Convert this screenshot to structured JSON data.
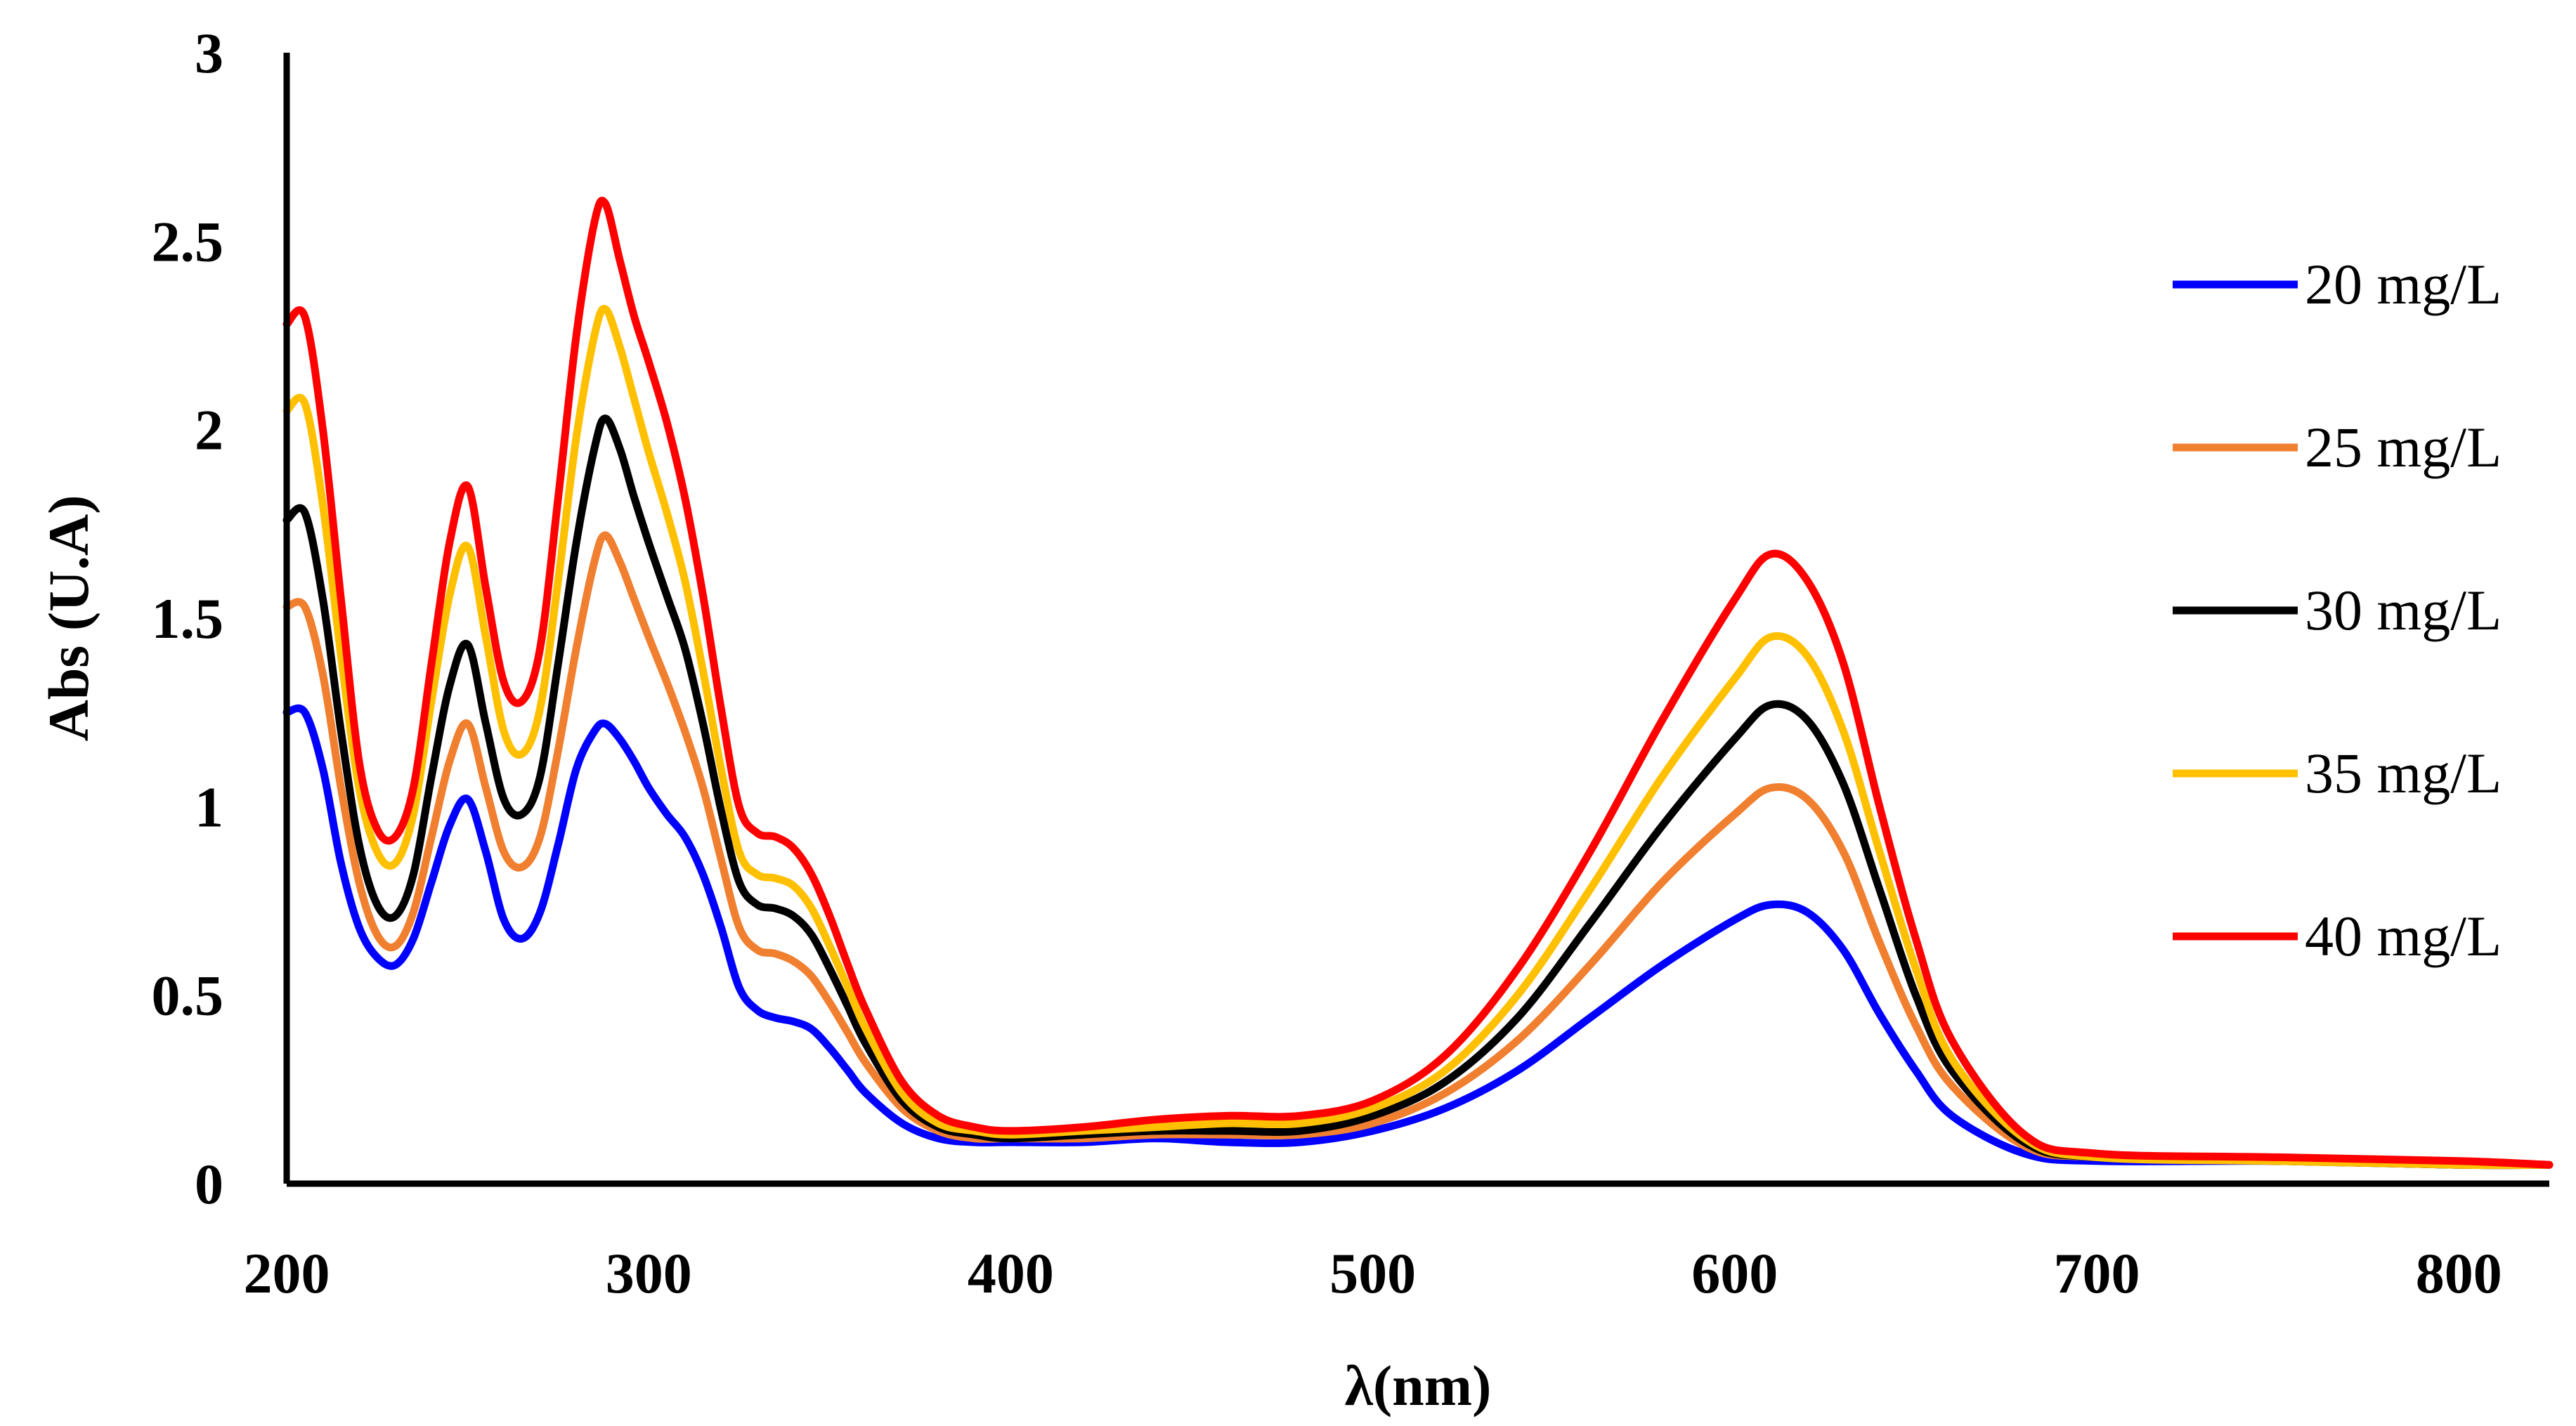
{
  "chart_data": {
    "type": "line",
    "title": "",
    "xlabel": "λ(nm)",
    "ylabel": "Abs (U.A)",
    "xlim": [
      200,
      825
    ],
    "ylim": [
      0,
      3
    ],
    "x_ticks": [
      "200",
      "300",
      "400",
      "500",
      "600",
      "700",
      "800"
    ],
    "y_ticks": [
      "0",
      "0.5",
      "1",
      "1.5",
      "2",
      "2.5",
      "3"
    ],
    "grid": false,
    "legend_position": "right",
    "x": [
      200,
      205,
      210,
      215,
      220,
      225,
      230,
      235,
      240,
      245,
      250,
      255,
      260,
      265,
      270,
      275,
      280,
      285,
      288,
      292,
      296,
      300,
      305,
      310,
      315,
      320,
      325,
      330,
      335,
      340,
      345,
      350,
      355,
      360,
      370,
      380,
      390,
      400,
      420,
      440,
      460,
      480,
      500,
      520,
      540,
      560,
      580,
      600,
      610,
      620,
      630,
      640,
      650,
      660,
      680,
      700,
      750,
      800,
      825
    ],
    "series": [
      {
        "name": "20 mg/L",
        "color": "#0000ff",
        "values": [
          1.25,
          1.25,
          1.1,
          0.85,
          0.68,
          0.6,
          0.58,
          0.65,
          0.8,
          0.95,
          1.02,
          0.88,
          0.7,
          0.65,
          0.72,
          0.9,
          1.1,
          1.2,
          1.22,
          1.18,
          1.12,
          1.05,
          0.98,
          0.92,
          0.82,
          0.68,
          0.52,
          0.46,
          0.44,
          0.43,
          0.41,
          0.36,
          0.3,
          0.24,
          0.16,
          0.12,
          0.11,
          0.11,
          0.11,
          0.12,
          0.11,
          0.11,
          0.14,
          0.2,
          0.3,
          0.44,
          0.58,
          0.7,
          0.74,
          0.72,
          0.62,
          0.45,
          0.3,
          0.18,
          0.08,
          0.06,
          0.06,
          0.05,
          0.05
        ]
      },
      {
        "name": "25 mg/L",
        "color": "#f07f30",
        "values": [
          1.53,
          1.53,
          1.35,
          1.05,
          0.8,
          0.66,
          0.63,
          0.72,
          0.92,
          1.12,
          1.22,
          1.05,
          0.88,
          0.84,
          0.92,
          1.15,
          1.42,
          1.65,
          1.72,
          1.65,
          1.55,
          1.45,
          1.33,
          1.2,
          1.05,
          0.86,
          0.68,
          0.62,
          0.61,
          0.59,
          0.55,
          0.48,
          0.4,
          0.32,
          0.2,
          0.14,
          0.12,
          0.12,
          0.12,
          0.13,
          0.13,
          0.13,
          0.16,
          0.24,
          0.38,
          0.58,
          0.8,
          0.98,
          1.05,
          1.02,
          0.88,
          0.64,
          0.42,
          0.26,
          0.1,
          0.07,
          0.06,
          0.05,
          0.05
        ]
      },
      {
        "name": "30 mg/L",
        "color": "#000000",
        "values": [
          1.76,
          1.78,
          1.55,
          1.2,
          0.9,
          0.74,
          0.71,
          0.82,
          1.08,
          1.32,
          1.43,
          1.22,
          1.02,
          0.98,
          1.08,
          1.38,
          1.7,
          1.95,
          2.03,
          1.95,
          1.82,
          1.7,
          1.56,
          1.42,
          1.22,
          0.99,
          0.8,
          0.74,
          0.73,
          0.71,
          0.66,
          0.57,
          0.47,
          0.37,
          0.22,
          0.15,
          0.13,
          0.12,
          0.13,
          0.14,
          0.14,
          0.14,
          0.18,
          0.27,
          0.44,
          0.69,
          0.95,
          1.18,
          1.27,
          1.23,
          1.06,
          0.78,
          0.5,
          0.3,
          0.11,
          0.07,
          0.06,
          0.05,
          0.05
        ]
      },
      {
        "name": "35 mg/L",
        "color": "#ffc000",
        "values": [
          2.05,
          2.07,
          1.8,
          1.4,
          1.05,
          0.88,
          0.85,
          0.98,
          1.28,
          1.56,
          1.69,
          1.45,
          1.2,
          1.14,
          1.26,
          1.6,
          1.98,
          2.25,
          2.32,
          2.22,
          2.08,
          1.94,
          1.78,
          1.6,
          1.36,
          1.1,
          0.88,
          0.82,
          0.81,
          0.79,
          0.73,
          0.63,
          0.52,
          0.41,
          0.24,
          0.16,
          0.14,
          0.13,
          0.14,
          0.15,
          0.16,
          0.16,
          0.2,
          0.3,
          0.5,
          0.78,
          1.08,
          1.34,
          1.45,
          1.4,
          1.2,
          0.88,
          0.57,
          0.33,
          0.12,
          0.07,
          0.06,
          0.05,
          0.05
        ]
      },
      {
        "name": "40 mg/L",
        "color": "#ff0000",
        "values": [
          2.28,
          2.3,
          2.0,
          1.55,
          1.12,
          0.94,
          0.92,
          1.05,
          1.38,
          1.7,
          1.85,
          1.58,
          1.33,
          1.28,
          1.42,
          1.82,
          2.25,
          2.55,
          2.6,
          2.45,
          2.3,
          2.18,
          2.02,
          1.82,
          1.56,
          1.26,
          1.0,
          0.93,
          0.92,
          0.89,
          0.82,
          0.71,
          0.58,
          0.46,
          0.27,
          0.18,
          0.15,
          0.14,
          0.15,
          0.17,
          0.18,
          0.18,
          0.22,
          0.34,
          0.57,
          0.88,
          1.23,
          1.55,
          1.67,
          1.6,
          1.38,
          1.0,
          0.65,
          0.38,
          0.13,
          0.08,
          0.07,
          0.06,
          0.05
        ]
      }
    ]
  }
}
